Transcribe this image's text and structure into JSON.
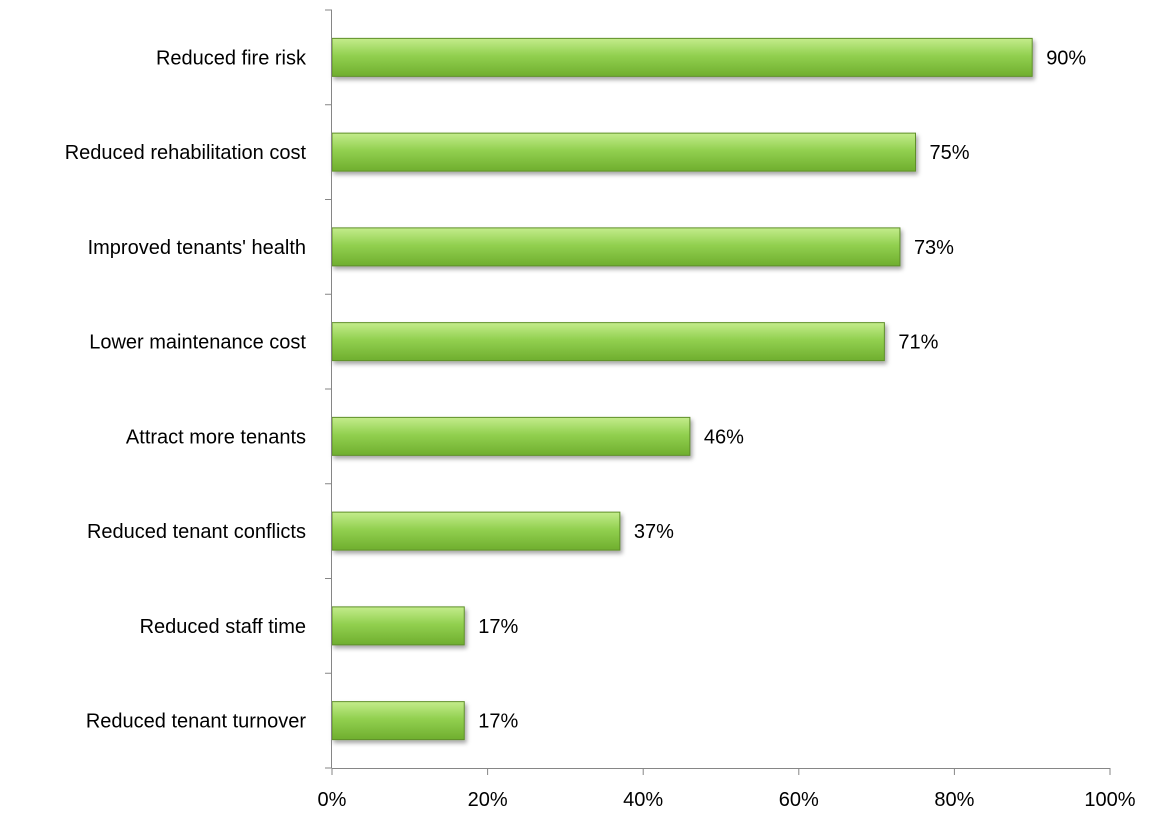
{
  "chart_data": {
    "type": "bar",
    "orientation": "horizontal",
    "categories": [
      "Reduced fire risk",
      "Reduced rehabilitation cost",
      "Improved tenants' health",
      "Lower maintenance cost",
      "Attract more tenants",
      "Reduced tenant conflicts",
      "Reduced staff time",
      "Reduced tenant turnover"
    ],
    "values": [
      90,
      75,
      73,
      71,
      46,
      37,
      17,
      17
    ],
    "value_labels": [
      "90%",
      "75%",
      "73%",
      "71%",
      "46%",
      "37%",
      "17%",
      "17%"
    ],
    "xlim": [
      0,
      100
    ],
    "x_ticks": [
      0,
      20,
      40,
      60,
      80,
      100
    ],
    "x_tick_labels": [
      "0%",
      "20%",
      "40%",
      "60%",
      "80%",
      "100%"
    ],
    "title": "",
    "xlabel": "",
    "ylabel": "",
    "grid": false,
    "legend": "none",
    "colors": {
      "bar_fill_light": "#c4ec8c",
      "bar_fill": "#92d050",
      "bar_fill_dark": "#6fae2e",
      "bar_stroke": "#5f8f2a",
      "axis": "#868686"
    }
  }
}
